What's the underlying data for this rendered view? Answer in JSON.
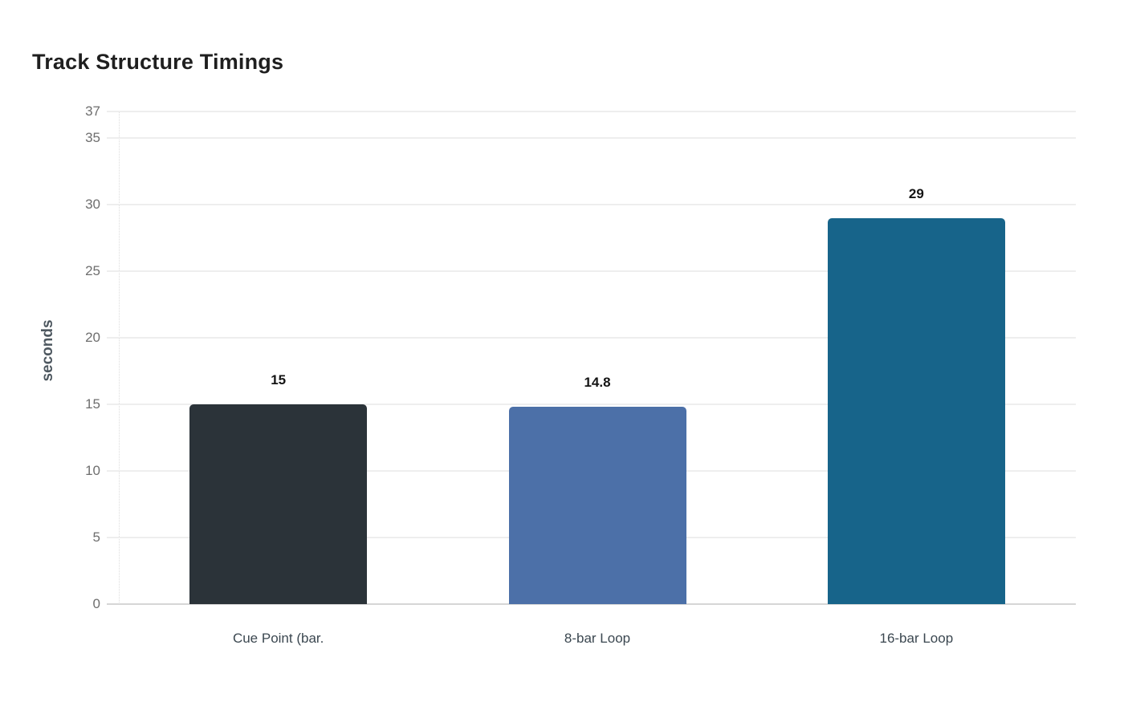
{
  "header": {
    "title": "Track Structure Timings"
  },
  "chart_data": {
    "type": "bar",
    "title": "Track Structure Timings",
    "xlabel": "",
    "ylabel": "seconds",
    "categories": [
      "Cue Point (bar.",
      "8-bar Loop",
      "16-bar Loop"
    ],
    "values": [
      15,
      14.8,
      29
    ],
    "value_labels": [
      "15",
      "14.8",
      "29"
    ],
    "bar_colors": [
      "#2b3339",
      "#4c70a8",
      "#17648a"
    ],
    "yticks": [
      0,
      5,
      10,
      15,
      20,
      25,
      30,
      35,
      37
    ],
    "ylim": [
      0,
      37
    ],
    "grid": true,
    "legend_position": "none"
  },
  "colors": {
    "background": "#ffffff",
    "grid": "#eeeeee",
    "axis_line": "#d6d6d6",
    "axis_dotted": "#dcdcdc",
    "tick_label": "#6e6e6e",
    "category_label": "#3b4750",
    "title": "#1f1f1f",
    "value_label": "#141414",
    "ylabel": "#4e5860"
  }
}
